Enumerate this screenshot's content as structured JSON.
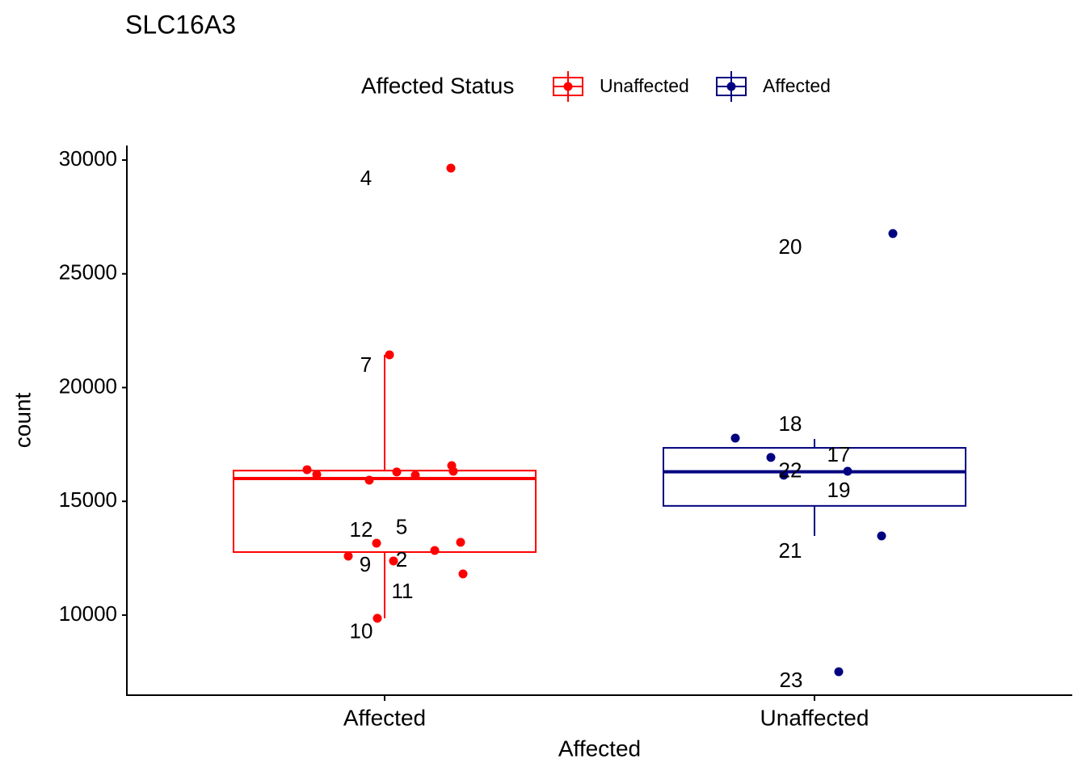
{
  "chart_data": {
    "type": "box",
    "title": "SLC16A3",
    "x_label": "Affected",
    "y_label": "count",
    "categories": [
      "Affected",
      "Unaffected"
    ],
    "ylim": [
      6480,
      30640
    ],
    "yticks": [
      10000,
      15000,
      20000,
      25000,
      30000
    ],
    "legend_title": "Affected Status",
    "series": [
      {
        "name": "Unaffected",
        "color": "#ff0000",
        "whisker_low": 9860,
        "q1": 12770,
        "median": 16000,
        "q3": 16350,
        "whisker_high": 21440,
        "values": [
          29645,
          21440,
          16390,
          16180,
          15930,
          16290,
          16150,
          16570,
          16320,
          13160,
          13200,
          12590,
          12380,
          12840,
          11810,
          9860
        ],
        "labels": [
          "4",
          "7",
          null,
          null,
          null,
          null,
          null,
          null,
          null,
          "12",
          "5",
          "9",
          "2",
          null,
          "11",
          "10"
        ]
      },
      {
        "name": "Affected",
        "color": "#000080",
        "whisker_low": 13480,
        "q1": 14800,
        "median": 16300,
        "q3": 17350,
        "whisker_high": 17740,
        "values": [
          26770,
          17780,
          16930,
          16150,
          16320,
          13480,
          7510
        ],
        "labels": [
          "20",
          "18",
          "17",
          "22",
          "19",
          "21",
          "23"
        ]
      }
    ]
  }
}
